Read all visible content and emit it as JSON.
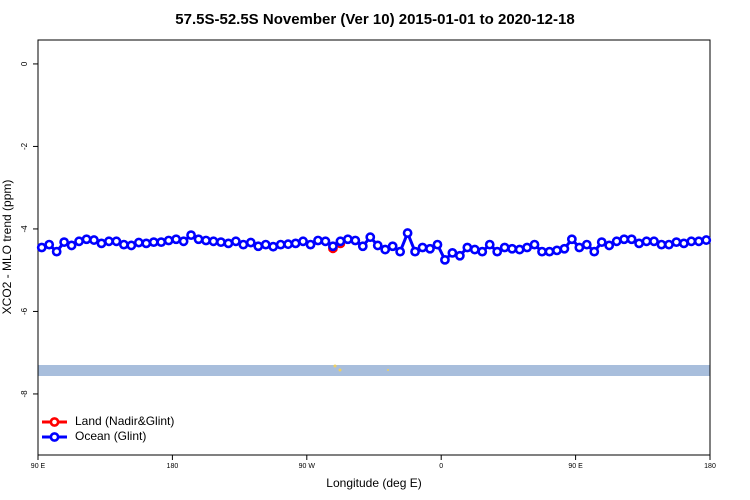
{
  "chart_data": {
    "type": "line",
    "title": "57.5S-52.5S November (Ver 10)   2015-01-01 to 2020-12-18",
    "x_label": "Longitude (deg E)",
    "y_label": "XCO2 - MLO trend (ppm)",
    "xlim": [
      90,
      540
    ],
    "ylim": [
      -9.48,
      0.58
    ],
    "xticks": [
      {
        "value": 90,
        "label": "90 E"
      },
      {
        "value": 180,
        "label": "180"
      },
      {
        "value": 270,
        "label": "90 W"
      },
      {
        "value": 360,
        "label": "0"
      },
      {
        "value": 450,
        "label": "90 E"
      },
      {
        "value": 540,
        "label": "180"
      }
    ],
    "yticks": [
      0,
      -2,
      -4,
      -6,
      -8
    ],
    "legend": "bottom-left",
    "series": [
      {
        "name": "Land (Nadir&Glint)",
        "color": "#ff0000",
        "x": [
          287.5,
          292.5
        ],
        "values": [
          -4.47,
          -4.35
        ]
      },
      {
        "name": "Ocean (Glint)",
        "color": "#0000ff",
        "x": [
          92.5,
          97.5,
          102.5,
          107.5,
          112.5,
          117.5,
          122.5,
          127.5,
          132.5,
          137.5,
          142.5,
          147.5,
          152.5,
          157.5,
          162.5,
          167.5,
          172.5,
          177.5,
          182.5,
          187.5,
          192.5,
          197.5,
          202.5,
          207.5,
          212.5,
          217.5,
          222.5,
          227.5,
          232.5,
          237.5,
          242.5,
          247.5,
          252.5,
          257.5,
          262.5,
          267.5,
          272.5,
          277.5,
          282.5,
          287.5,
          292.5,
          297.5,
          302.5,
          307.5,
          312.5,
          317.5,
          322.5,
          327.5,
          332.5,
          337.5,
          342.5,
          347.5,
          352.5,
          357.5,
          362.5,
          367.5,
          372.5,
          377.5,
          382.5,
          387.5,
          392.5,
          397.5,
          402.5,
          407.5,
          412.5,
          417.5,
          422.5,
          427.5,
          432.5,
          437.5,
          442.5,
          447.5,
          452.5,
          457.5,
          462.5,
          467.5,
          472.5,
          477.5,
          482.5,
          487.5,
          492.5,
          497.5,
          502.5,
          507.5,
          512.5,
          517.5,
          522.5,
          527.5,
          532.5,
          537.5
        ],
        "values": [
          -4.45,
          -4.38,
          -4.55,
          -4.32,
          -4.4,
          -4.3,
          -4.25,
          -4.27,
          -4.35,
          -4.3,
          -4.3,
          -4.38,
          -4.4,
          -4.33,
          -4.35,
          -4.32,
          -4.32,
          -4.28,
          -4.25,
          -4.3,
          -4.15,
          -4.25,
          -4.28,
          -4.3,
          -4.32,
          -4.35,
          -4.3,
          -4.38,
          -4.33,
          -4.42,
          -4.38,
          -4.43,
          -4.38,
          -4.37,
          -4.35,
          -4.3,
          -4.38,
          -4.28,
          -4.3,
          -4.42,
          -4.3,
          -4.25,
          -4.28,
          -4.42,
          -4.2,
          -4.4,
          -4.5,
          -4.42,
          -4.55,
          -4.1,
          -4.55,
          -4.45,
          -4.48,
          -4.38,
          -4.75,
          -4.58,
          -4.65,
          -4.45,
          -4.5,
          -4.55,
          -4.38,
          -4.55,
          -4.45,
          -4.48,
          -4.5,
          -4.45,
          -4.38,
          -4.55,
          -4.55,
          -4.52,
          -4.48,
          -4.25,
          -4.45,
          -4.38,
          -4.55,
          -4.32,
          -4.4,
          -4.3,
          -4.25,
          -4.25,
          -4.35,
          -4.3,
          -4.3,
          -4.38,
          -4.38,
          -4.32,
          -4.35,
          -4.3,
          -4.3,
          -4.27
        ]
      }
    ]
  }
}
